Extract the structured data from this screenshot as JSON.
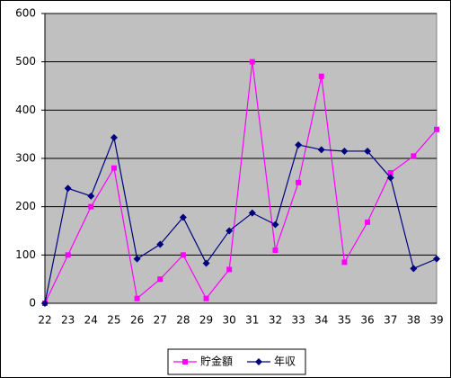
{
  "chart_data": {
    "type": "line",
    "categories": [
      "22",
      "23",
      "24",
      "25",
      "26",
      "27",
      "28",
      "29",
      "30",
      "31",
      "32",
      "33",
      "34",
      "35",
      "36",
      "37",
      "38",
      "39"
    ],
    "series": [
      {
        "name": "貯金額",
        "color": "#ff00ff",
        "marker": "square",
        "values": [
          0,
          100,
          200,
          280,
          10,
          50,
          100,
          10,
          70,
          500,
          110,
          250,
          470,
          85,
          168,
          270,
          305,
          360
        ]
      },
      {
        "name": "年収",
        "color": "#000080",
        "marker": "diamond",
        "values": [
          0,
          238,
          222,
          343,
          92,
          122,
          178,
          83,
          150,
          187,
          163,
          328,
          318,
          315,
          315,
          260,
          72,
          92
        ]
      }
    ],
    "ylim": [
      0,
      600
    ],
    "yticks": [
      0,
      100,
      200,
      300,
      400,
      500,
      600
    ],
    "grid": true,
    "legend": "bottom",
    "plot_background": "#c0c0c0"
  }
}
